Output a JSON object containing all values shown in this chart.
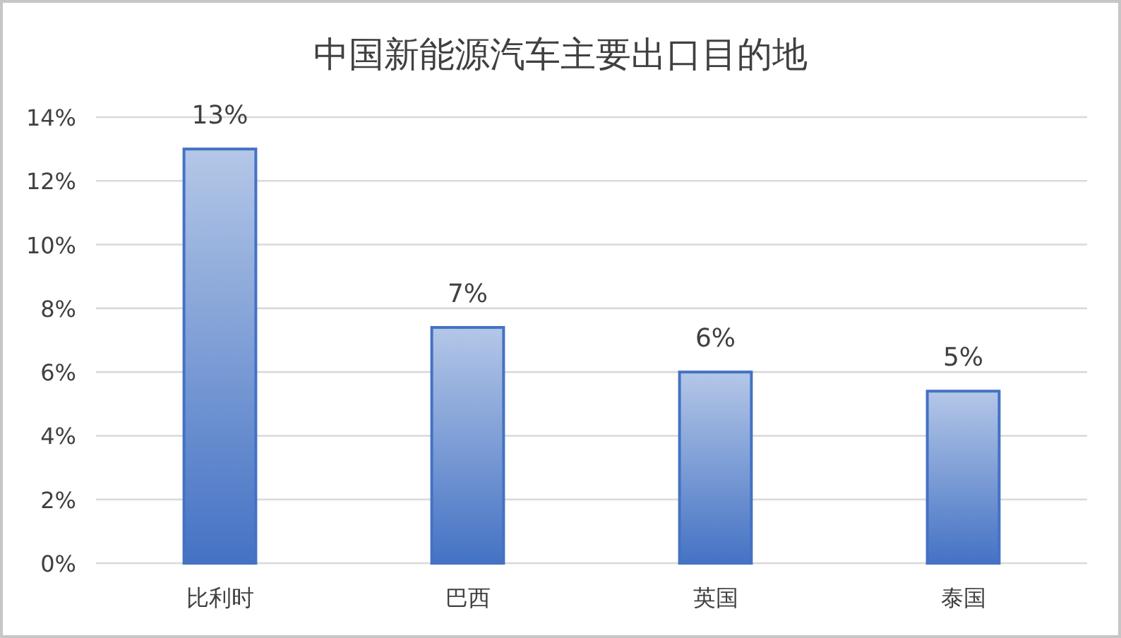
{
  "chart_data": {
    "type": "bar",
    "title": "中国新能源汽车主要出口目的地",
    "categories": [
      "比利时",
      "巴西",
      "英国",
      "泰国"
    ],
    "values": [
      13,
      7.4,
      6,
      5.4
    ],
    "value_labels": [
      "13%",
      "7%",
      "6%",
      "5%"
    ],
    "color": "#4472c4",
    "ylim": [
      0,
      14
    ],
    "yticks": [
      {
        "value": 0,
        "label": "0%"
      },
      {
        "value": 2,
        "label": "2%"
      },
      {
        "value": 4,
        "label": "4%"
      },
      {
        "value": 6,
        "label": "6%"
      },
      {
        "value": 8,
        "label": "8%"
      },
      {
        "value": 10,
        "label": "10%"
      },
      {
        "value": 12,
        "label": "12%"
      },
      {
        "value": 14,
        "label": "14%"
      }
    ],
    "grid": "y"
  }
}
